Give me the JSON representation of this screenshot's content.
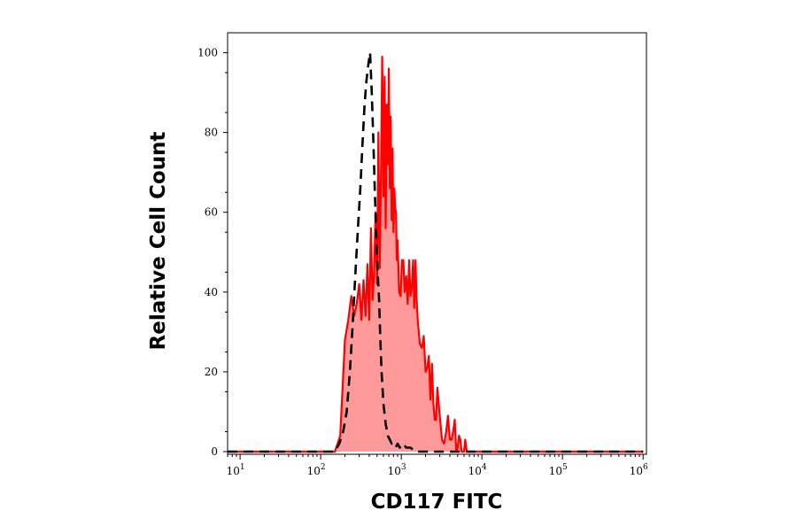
{
  "chart_data": {
    "type": "area",
    "title": "",
    "xlabel": "CD117 FITC",
    "ylabel": "Relative Cell Count",
    "x_scale": "log",
    "xlim": [
      7,
      1100000
    ],
    "ylim": [
      0,
      105
    ],
    "x_ticks": [
      {
        "base": "10",
        "exp": "1"
      },
      {
        "base": "10",
        "exp": "2"
      },
      {
        "base": "10",
        "exp": "3"
      },
      {
        "base": "10",
        "exp": "4"
      },
      {
        "base": "10",
        "exp": "5"
      },
      {
        "base": "10",
        "exp": "6"
      }
    ],
    "y_ticks": [
      "0",
      "20",
      "40",
      "60",
      "80",
      "100"
    ],
    "grid": false,
    "legend": "none",
    "colors": {
      "stained": "#ff0000",
      "stained_fill": "#ff9a9a",
      "control": "#000000"
    },
    "series": [
      {
        "style": "solid-red-filled",
        "x": [
          7,
          150,
          175,
          200,
          220,
          240,
          260,
          280,
          300,
          320,
          340,
          360,
          380,
          400,
          420,
          440,
          460,
          480,
          500,
          520,
          540,
          560,
          580,
          600,
          620,
          640,
          660,
          680,
          700,
          720,
          740,
          760,
          780,
          800,
          820,
          840,
          860,
          880,
          900,
          940,
          980,
          1020,
          1060,
          1100,
          1150,
          1200,
          1250,
          1300,
          1350,
          1400,
          1450,
          1500,
          1550,
          1600,
          1700,
          1800,
          1900,
          2000,
          2100,
          2200,
          2300,
          2400,
          2500,
          2600,
          2700,
          2800,
          3000,
          3200,
          3400,
          3600,
          3800,
          4000,
          4200,
          4400,
          4600,
          4800,
          5000,
          5200,
          5400,
          5600,
          5800,
          6000,
          6200,
          6500,
          7000,
          1000000
        ],
        "values": [
          0,
          0,
          4,
          28,
          33,
          39,
          34,
          37,
          42,
          33,
          43,
          34,
          47,
          33,
          56,
          38,
          45,
          60,
          42,
          80,
          46,
          69,
          99,
          64,
          94,
          56,
          87,
          72,
          96,
          66,
          84,
          58,
          76,
          55,
          66,
          61,
          60,
          48,
          53,
          40,
          39,
          48,
          48,
          40,
          44,
          37,
          48,
          39,
          41,
          48,
          36,
          48,
          38,
          33,
          27,
          26,
          29,
          20,
          21,
          24,
          13,
          22,
          12,
          8,
          8,
          16,
          9,
          3,
          2,
          5,
          9,
          3,
          3,
          5,
          8,
          0,
          1,
          4,
          3,
          0,
          0,
          0,
          3,
          0,
          0,
          0
        ]
      },
      {
        "style": "dashed-black",
        "x": [
          7,
          150,
          170,
          190,
          210,
          230,
          250,
          270,
          290,
          310,
          330,
          350,
          370,
          390,
          410,
          430,
          450,
          470,
          490,
          510,
          530,
          550,
          570,
          600,
          640,
          680,
          720,
          760,
          800,
          850,
          900,
          960,
          1050,
          1150,
          1300,
          1500,
          1800,
          2200,
          3000,
          1000000
        ],
        "values": [
          0,
          0,
          2,
          5,
          10,
          20,
          32,
          45,
          56,
          66,
          77,
          87,
          93,
          97,
          100,
          90,
          78,
          65,
          53,
          45,
          38,
          28,
          20,
          12,
          7,
          4,
          3,
          2,
          2,
          1,
          2,
          1,
          2,
          1,
          1,
          0,
          0,
          0,
          0,
          0
        ]
      }
    ]
  }
}
